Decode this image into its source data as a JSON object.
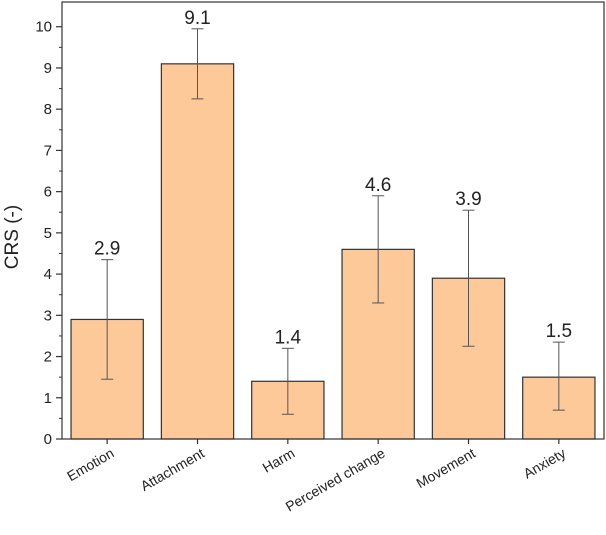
{
  "chart_data": {
    "type": "bar",
    "title": "",
    "xlabel": "",
    "ylabel": "CRS (-)",
    "ylim": [
      0,
      10.6
    ],
    "yticks": [
      0,
      1,
      2,
      3,
      4,
      5,
      6,
      7,
      8,
      9,
      10
    ],
    "categories": [
      "Emotion",
      "Attachment",
      "Harm",
      "Perceived change",
      "Movement",
      "Anxiety"
    ],
    "values": [
      2.9,
      9.1,
      1.4,
      4.6,
      3.9,
      1.5
    ],
    "data_labels": [
      "2.9",
      "9.1",
      "1.4",
      "4.6",
      "3.9",
      "1.5"
    ],
    "error_low": [
      1.45,
      8.25,
      0.6,
      3.3,
      2.25,
      0.7
    ],
    "error_high": [
      4.35,
      9.95,
      2.2,
      5.9,
      5.55,
      2.35
    ],
    "grid": false,
    "bar_color": "#fdc998",
    "bar_edge_color": "#333333"
  }
}
